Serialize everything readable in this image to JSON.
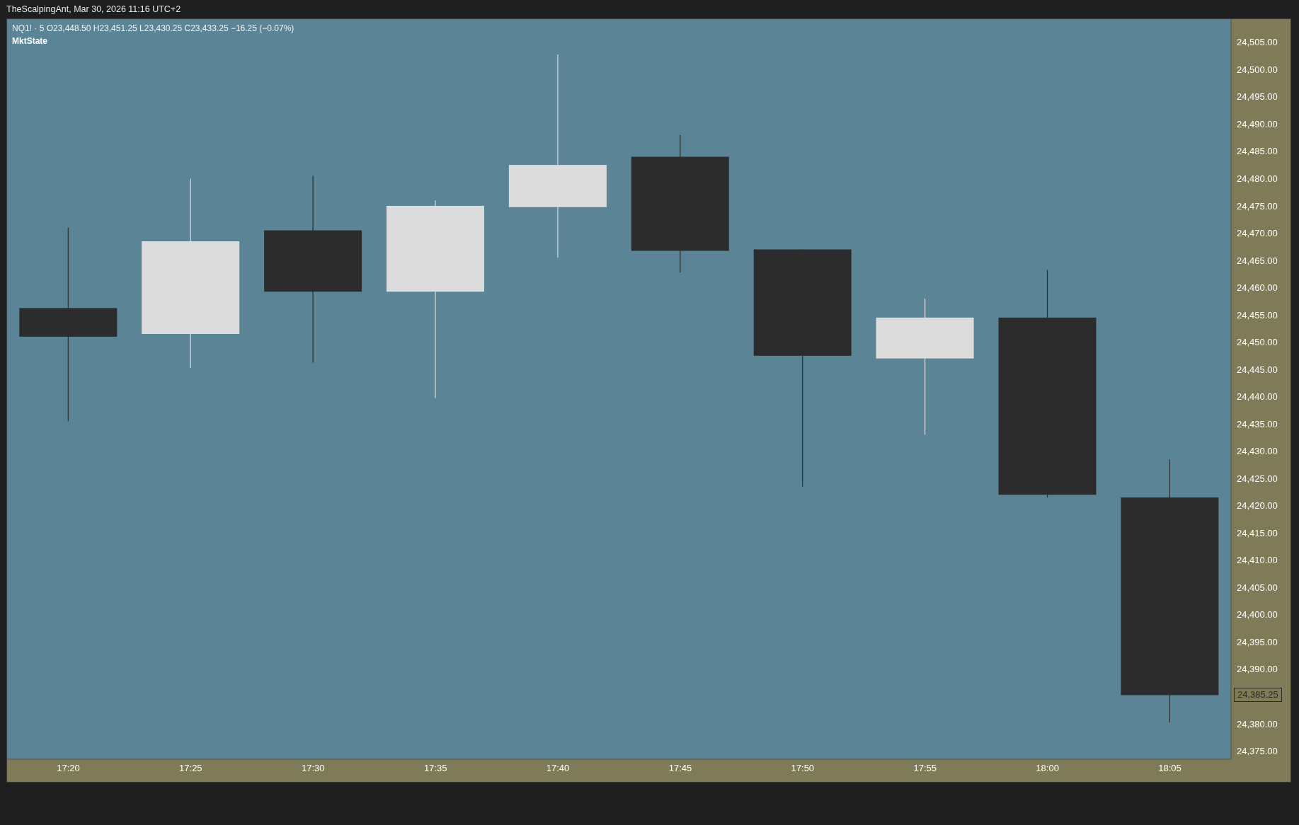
{
  "chart_data": {
    "type": "candlestick",
    "title": "TheScalpingAnt, Mar 30, 2026 11:16 UTC+2",
    "subtitle": "NQ1! · 5 O23,448.50 H23,451.25 L23,430.25 C23,433.25 −16.25 (−0.07%)",
    "annotations": [
      "MktState",
      "24,385.25"
    ],
    "categories": [
      "17:20",
      "17:25",
      "17:30",
      "17:35",
      "17:40",
      "17:45",
      "17:50",
      "17:55",
      "18:00",
      "18:05"
    ],
    "ohlc": [
      [
        24456.25,
        24471,
        24435.5,
        24451
      ],
      [
        24451.5,
        24480,
        24445.25,
        24468.5
      ],
      [
        24470.5,
        24480.5,
        24446.25,
        24459.25
      ],
      [
        24459.25,
        24476,
        24439.75,
        24475
      ],
      [
        24474.75,
        24502.75,
        24465.5,
        24482.5
      ],
      [
        24484,
        24488,
        24462.75,
        24466.75
      ],
      [
        24467,
        24467,
        24423.5,
        24447.5
      ],
      [
        24447,
        24458,
        24433,
        24454.5
      ],
      [
        24454.5,
        24463.25,
        24421.5,
        24422
      ],
      [
        24421.5,
        24428.5,
        24380.25,
        24385.25
      ]
    ],
    "colors": [
      "#2c2c2c",
      "#dcdcdc",
      "#2c2c2c",
      "#dcdcdc",
      "#dcdcdc",
      "#2c2c2c",
      "#2c2c2c",
      "#dcdcdc",
      "#2c2c2c",
      "#2c2c2c"
    ],
    "ylim": [
      24373.5,
      24509.25
    ],
    "yticks": [
      {
        "value": 24375,
        "label": "24,375.00"
      },
      {
        "value": 24380,
        "label": "24,380.00"
      },
      {
        "value": 24390,
        "label": "24,390.00"
      },
      {
        "value": 24395,
        "label": "24,395.00"
      },
      {
        "value": 24400,
        "label": "24,400.00"
      },
      {
        "value": 24405,
        "label": "24,405.00"
      },
      {
        "value": 24410,
        "label": "24,410.00"
      },
      {
        "value": 24415,
        "label": "24,415.00"
      },
      {
        "value": 24420,
        "label": "24,420.00"
      },
      {
        "value": 24425,
        "label": "24,425.00"
      },
      {
        "value": 24430,
        "label": "24,430.00"
      },
      {
        "value": 24435,
        "label": "24,435.00"
      },
      {
        "value": 24440,
        "label": "24,440.00"
      },
      {
        "value": 24445,
        "label": "24,445.00"
      },
      {
        "value": 24450,
        "label": "24,450.00"
      },
      {
        "value": 24455,
        "label": "24,455.00"
      },
      {
        "value": 24460,
        "label": "24,460.00"
      },
      {
        "value": 24465,
        "label": "24,465.00"
      },
      {
        "value": 24470,
        "label": "24,470.00"
      },
      {
        "value": 24475,
        "label": "24,475.00"
      },
      {
        "value": 24480,
        "label": "24,480.00"
      },
      {
        "value": 24485,
        "label": "24,485.00"
      },
      {
        "value": 24490,
        "label": "24,490.00"
      },
      {
        "value": 24495,
        "label": "24,495.00"
      },
      {
        "value": 24500,
        "label": "24,500.00"
      },
      {
        "value": 24505,
        "label": "24,505.00"
      }
    ]
  }
}
